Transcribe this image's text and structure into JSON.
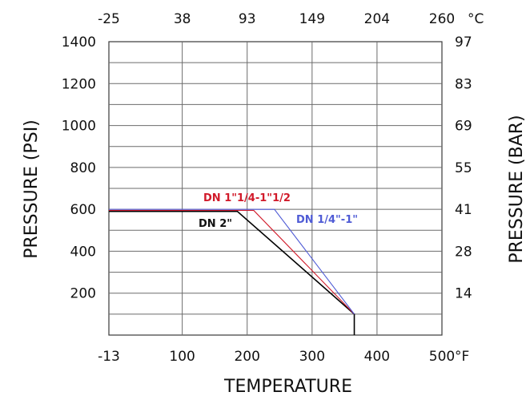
{
  "chart_data": {
    "type": "line",
    "xlabel": "TEMPERATURE",
    "ylabel_left": "PRESSURE (PSI)",
    "ylabel_right": "PRESSURE (BAR)",
    "x_unit_bottom": "°F",
    "x_unit_top": "°C",
    "xlim": [
      -13,
      500
    ],
    "ylim": [
      0,
      1400
    ],
    "x_ticks_bottom": [
      "-13",
      "100",
      "200",
      "300",
      "400",
      "500"
    ],
    "x_ticks_top": [
      "-25",
      "38",
      "93",
      "149",
      "204",
      "260"
    ],
    "y_ticks_left": [
      "1400",
      "1200",
      "1000",
      "800",
      "600",
      "400",
      "200"
    ],
    "y_ticks_right": [
      "97",
      "83",
      "69",
      "55",
      "41",
      "28",
      "14"
    ],
    "grid": true,
    "series": [
      {
        "name": "DN 2\"",
        "color": "#000000",
        "x": [
          -13,
          185,
          365,
          365
        ],
        "y": [
          590,
          590,
          100,
          0
        ]
      },
      {
        "name": "DN 1\"1/4-1\"1/2",
        "color": "#d11a2a",
        "x": [
          -13,
          210,
          365
        ],
        "y": [
          595,
          595,
          100
        ]
      },
      {
        "name": "DN 1/4\"-1\"",
        "color": "#4f5bd5",
        "x": [
          -13,
          242,
          365
        ],
        "y": [
          600,
          600,
          100
        ]
      }
    ]
  }
}
